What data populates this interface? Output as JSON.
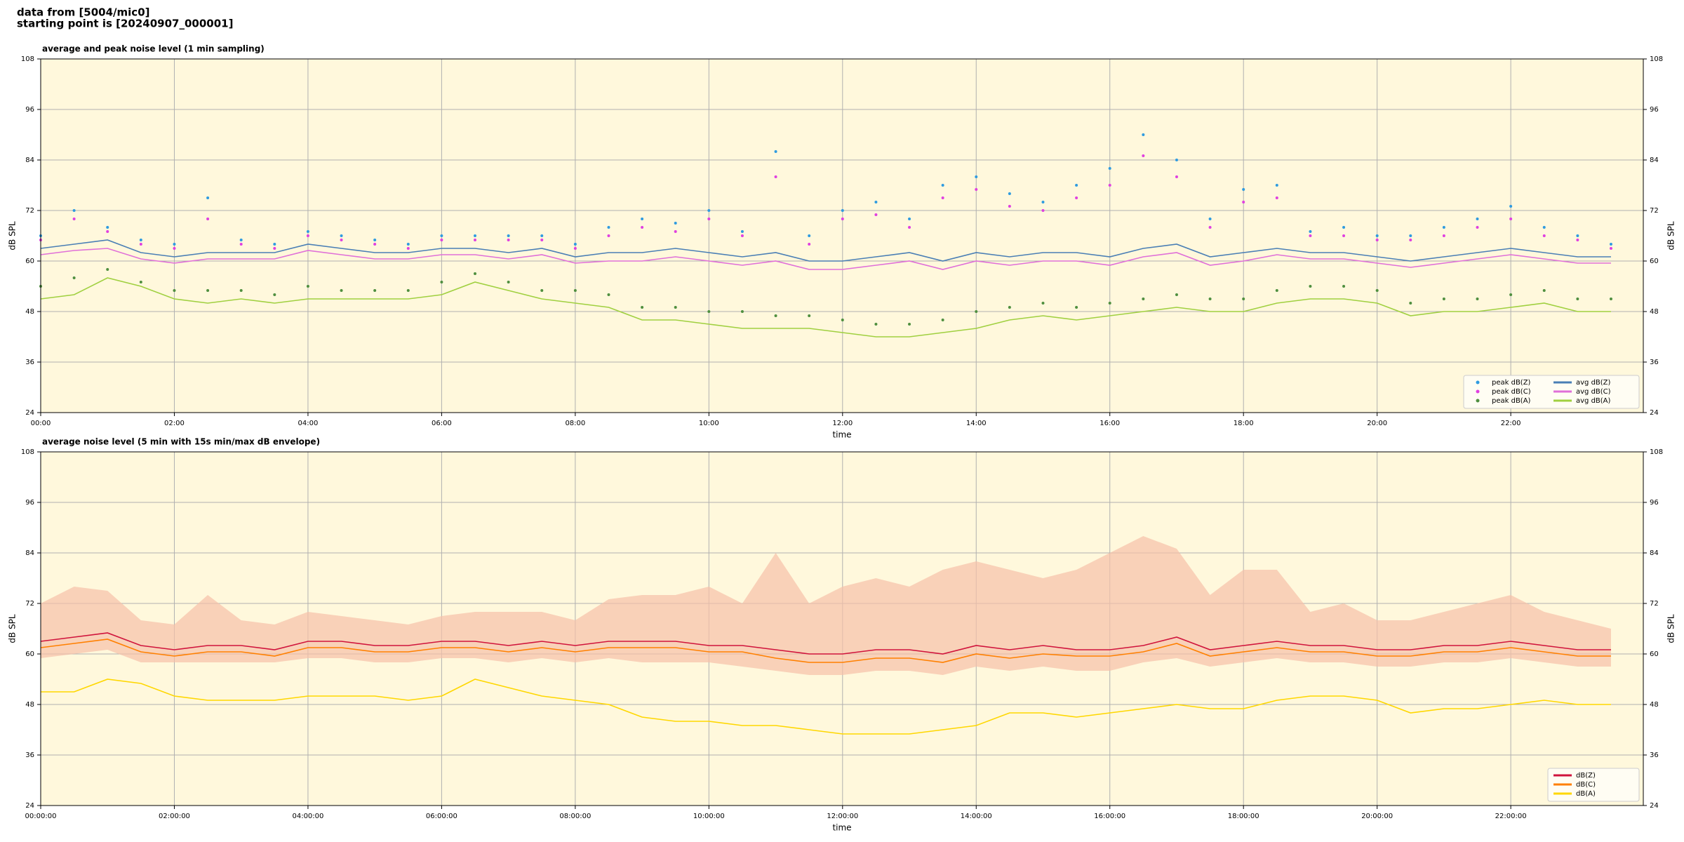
{
  "header": {
    "line1": "data from [5004/mic0]",
    "line2": "starting point is [20240907_000001]"
  },
  "chart_data": [
    {
      "type": "line",
      "title": "average and peak noise level (1 min sampling)",
      "x_label": "time",
      "y_label": "dB SPL",
      "xlim": [
        "00:00",
        "23:59"
      ],
      "xticks": [
        "00:00",
        "02:00",
        "04:00",
        "06:00",
        "08:00",
        "10:00",
        "12:00",
        "14:00",
        "16:00",
        "18:00",
        "20:00",
        "22:00"
      ],
      "ylim": [
        24,
        108
      ],
      "yticks": [
        24,
        36,
        48,
        60,
        72,
        84,
        96,
        108
      ],
      "grid": true,
      "legend": "lower right",
      "legend_columns": 2,
      "x": [
        "00:00",
        "00:30",
        "01:00",
        "01:30",
        "02:00",
        "02:30",
        "03:00",
        "03:30",
        "04:00",
        "04:30",
        "05:00",
        "05:30",
        "06:00",
        "06:30",
        "07:00",
        "07:30",
        "08:00",
        "08:30",
        "09:00",
        "09:30",
        "10:00",
        "10:30",
        "11:00",
        "11:30",
        "12:00",
        "12:30",
        "13:00",
        "13:30",
        "14:00",
        "14:30",
        "15:00",
        "15:30",
        "16:00",
        "16:30",
        "17:00",
        "17:30",
        "18:00",
        "18:30",
        "19:00",
        "19:30",
        "20:00",
        "20:30",
        "21:00",
        "21:30",
        "22:00",
        "22:30",
        "23:00",
        "23:30"
      ],
      "series": [
        {
          "name": "peak dB(Z)",
          "style": "scatter",
          "color": "#2f9be0",
          "values": [
            66,
            72,
            68,
            65,
            64,
            75,
            65,
            64,
            67,
            66,
            65,
            64,
            66,
            66,
            66,
            66,
            64,
            68,
            70,
            69,
            72,
            67,
            86,
            66,
            72,
            74,
            70,
            78,
            80,
            76,
            74,
            78,
            82,
            90,
            84,
            70,
            77,
            78,
            67,
            68,
            66,
            66,
            68,
            70,
            73,
            68,
            66,
            64
          ]
        },
        {
          "name": "peak dB(C)",
          "style": "scatter",
          "color": "#e040e0",
          "values": [
            65,
            70,
            67,
            64,
            63,
            70,
            64,
            63,
            66,
            65,
            64,
            63,
            65,
            65,
            65,
            65,
            63,
            66,
            68,
            67,
            70,
            66,
            80,
            64,
            70,
            71,
            68,
            75,
            77,
            73,
            72,
            75,
            78,
            85,
            80,
            68,
            74,
            75,
            66,
            66,
            65,
            65,
            66,
            68,
            70,
            66,
            65,
            63
          ]
        },
        {
          "name": "peak dB(A)",
          "style": "scatter",
          "color": "#4f8f3f",
          "values": [
            54,
            56,
            58,
            55,
            53,
            53,
            53,
            52,
            54,
            53,
            53,
            53,
            55,
            57,
            55,
            53,
            53,
            52,
            49,
            49,
            48,
            48,
            47,
            47,
            46,
            45,
            45,
            46,
            48,
            49,
            50,
            49,
            50,
            51,
            52,
            51,
            51,
            53,
            54,
            54,
            53,
            50,
            51,
            51,
            52,
            53,
            51,
            51
          ]
        },
        {
          "name": "avg dB(Z)",
          "style": "line",
          "color": "#4a7fb5",
          "values": [
            63,
            64,
            65,
            62,
            61,
            62,
            62,
            62,
            64,
            63,
            62,
            62,
            63,
            63,
            62,
            63,
            61,
            62,
            62,
            63,
            62,
            61,
            62,
            60,
            60,
            61,
            62,
            60,
            62,
            61,
            62,
            62,
            61,
            63,
            64,
            61,
            62,
            63,
            62,
            62,
            61,
            60,
            61,
            62,
            63,
            62,
            61,
            61
          ]
        },
        {
          "name": "avg dB(C)",
          "style": "line",
          "color": "#e070d8",
          "values": [
            61.5,
            62.5,
            63,
            60.5,
            59.5,
            60.5,
            60.5,
            60.5,
            62.5,
            61.5,
            60.5,
            60.5,
            61.5,
            61.5,
            60.5,
            61.5,
            59.5,
            60,
            60,
            61,
            60,
            59,
            60,
            58,
            58,
            59,
            60,
            58,
            60,
            59,
            60,
            60,
            59,
            61,
            62,
            59,
            60,
            61.5,
            60.5,
            60.5,
            59.5,
            58.5,
            59.5,
            60.5,
            61.5,
            60.5,
            59.5,
            59.5
          ]
        },
        {
          "name": "avg dB(A)",
          "style": "line",
          "color": "#a0d040",
          "values": [
            51,
            52,
            56,
            54,
            51,
            50,
            51,
            50,
            51,
            51,
            51,
            51,
            52,
            55,
            53,
            51,
            50,
            49,
            46,
            46,
            45,
            44,
            44,
            44,
            43,
            42,
            42,
            43,
            44,
            46,
            47,
            46,
            47,
            48,
            49,
            48,
            48,
            50,
            51,
            51,
            50,
            47,
            48,
            48,
            49,
            50,
            48,
            48
          ]
        }
      ]
    },
    {
      "type": "line",
      "title": "average noise level (5 min with 15s min/max dB envelope)",
      "x_label": "time",
      "y_label": "dB SPL",
      "xlim": [
        "00:00:00",
        "23:59:00"
      ],
      "xticks": [
        "00:00:00",
        "02:00:00",
        "04:00:00",
        "06:00:00",
        "08:00:00",
        "10:00:00",
        "12:00:00",
        "14:00:00",
        "16:00:00",
        "18:00:00",
        "20:00:00",
        "22:00:00"
      ],
      "ylim": [
        24,
        108
      ],
      "yticks": [
        24,
        36,
        48,
        60,
        72,
        84,
        96,
        108
      ],
      "grid": true,
      "legend": "lower right",
      "legend_columns": 1,
      "x": [
        "00:00:00",
        "00:30:00",
        "01:00:00",
        "01:30:00",
        "02:00:00",
        "02:30:00",
        "03:00:00",
        "03:30:00",
        "04:00:00",
        "04:30:00",
        "05:00:00",
        "05:30:00",
        "06:00:00",
        "06:30:00",
        "07:00:00",
        "07:30:00",
        "08:00:00",
        "08:30:00",
        "09:00:00",
        "09:30:00",
        "10:00:00",
        "10:30:00",
        "11:00:00",
        "11:30:00",
        "12:00:00",
        "12:30:00",
        "13:00:00",
        "13:30:00",
        "14:00:00",
        "14:30:00",
        "15:00:00",
        "15:30:00",
        "16:00:00",
        "16:30:00",
        "17:00:00",
        "17:30:00",
        "18:00:00",
        "18:30:00",
        "19:00:00",
        "19:30:00",
        "20:00:00",
        "20:30:00",
        "21:00:00",
        "21:30:00",
        "22:00:00",
        "22:30:00",
        "23:00:00",
        "23:30:00"
      ],
      "envelope": {
        "color": "#f7c0a8",
        "low": [
          59,
          60,
          61,
          58,
          58,
          58,
          58,
          58,
          59,
          59,
          58,
          58,
          59,
          59,
          58,
          59,
          58,
          59,
          58,
          58,
          58,
          57,
          56,
          55,
          55,
          56,
          56,
          55,
          57,
          56,
          57,
          56,
          56,
          58,
          59,
          57,
          58,
          59,
          58,
          58,
          57,
          57,
          58,
          58,
          59,
          58,
          57,
          57
        ],
        "high": [
          72,
          76,
          75,
          68,
          67,
          74,
          68,
          67,
          70,
          69,
          68,
          67,
          69,
          70,
          70,
          70,
          68,
          73,
          74,
          74,
          76,
          72,
          84,
          72,
          76,
          78,
          76,
          80,
          82,
          80,
          78,
          80,
          84,
          88,
          85,
          74,
          80,
          80,
          70,
          72,
          68,
          68,
          70,
          72,
          74,
          70,
          68,
          66
        ]
      },
      "series": [
        {
          "name": "dB(Z)",
          "style": "line",
          "color": "#d0143c",
          "values": [
            63,
            64,
            65,
            62,
            61,
            62,
            62,
            61,
            63,
            63,
            62,
            62,
            63,
            63,
            62,
            63,
            62,
            63,
            63,
            63,
            62,
            62,
            61,
            60,
            60,
            61,
            61,
            60,
            62,
            61,
            62,
            61,
            61,
            62,
            64,
            61,
            62,
            63,
            62,
            62,
            61,
            61,
            62,
            62,
            63,
            62,
            61,
            61
          ]
        },
        {
          "name": "dB(C)",
          "style": "line",
          "color": "#ff8000",
          "values": [
            61.5,
            62.5,
            63.5,
            60.5,
            59.5,
            60.5,
            60.5,
            59.5,
            61.5,
            61.5,
            60.5,
            60.5,
            61.5,
            61.5,
            60.5,
            61.5,
            60.5,
            61.5,
            61.5,
            61.5,
            60.5,
            60.5,
            59,
            58,
            58,
            59,
            59,
            58,
            60,
            59,
            60,
            59.5,
            59.5,
            60.5,
            62.5,
            59.5,
            60.5,
            61.5,
            60.5,
            60.5,
            59.5,
            59.5,
            60.5,
            60.5,
            61.5,
            60.5,
            59.5,
            59.5
          ]
        },
        {
          "name": "dB(A)",
          "style": "line",
          "color": "#ffd700",
          "values": [
            51,
            51,
            54,
            53,
            50,
            49,
            49,
            49,
            50,
            50,
            50,
            49,
            50,
            54,
            52,
            50,
            49,
            48,
            45,
            44,
            44,
            43,
            43,
            42,
            41,
            41,
            41,
            42,
            43,
            46,
            46,
            45,
            46,
            47,
            48,
            47,
            47,
            49,
            50,
            50,
            49,
            46,
            47,
            47,
            48,
            49,
            48,
            48
          ]
        }
      ]
    }
  ]
}
